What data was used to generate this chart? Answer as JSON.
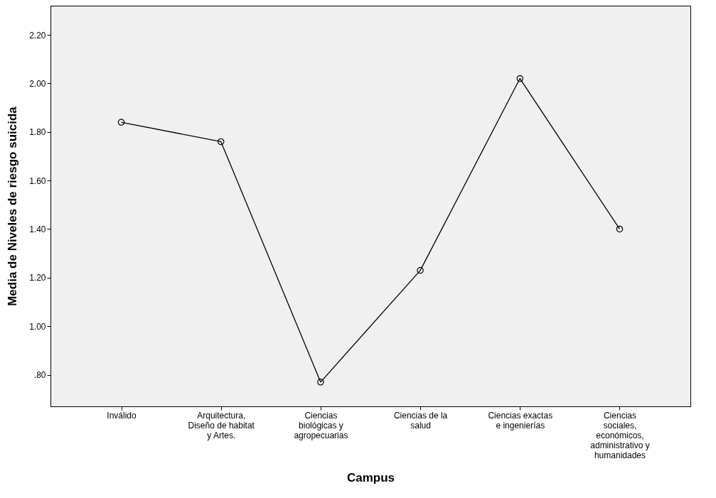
{
  "chart_data": {
    "type": "line",
    "xlabel": "Campus",
    "ylabel": "Media de Niveles de riesgo suicida",
    "categories": [
      "Inválido",
      "Arquitectura, Diseño de habitat y Artes.",
      "Ciencias biológicas y agropecuarias",
      "Ciencias de la salud",
      "Ciencias exactas e ingenierías",
      "Ciencias sociales, económicos, administrativo y humanidades"
    ],
    "series": [
      {
        "color": "#000000",
        "values": [
          1.84,
          1.76,
          0.77,
          1.23,
          2.02,
          1.4
        ]
      }
    ],
    "ylim": [
      0.67,
      2.32
    ],
    "yticks": [
      {
        "value": 0.8,
        "label": ".80"
      },
      {
        "value": 1.0,
        "label": "1.00"
      },
      {
        "value": 1.2,
        "label": "1.20"
      },
      {
        "value": 1.4,
        "label": "1.40"
      },
      {
        "value": 1.6,
        "label": "1.60"
      },
      {
        "value": 1.8,
        "label": "1.80"
      },
      {
        "value": 2.0,
        "label": "2.00"
      },
      {
        "value": 2.2,
        "label": "2.20"
      }
    ],
    "marker": "circle",
    "grid": false,
    "legend": false
  }
}
